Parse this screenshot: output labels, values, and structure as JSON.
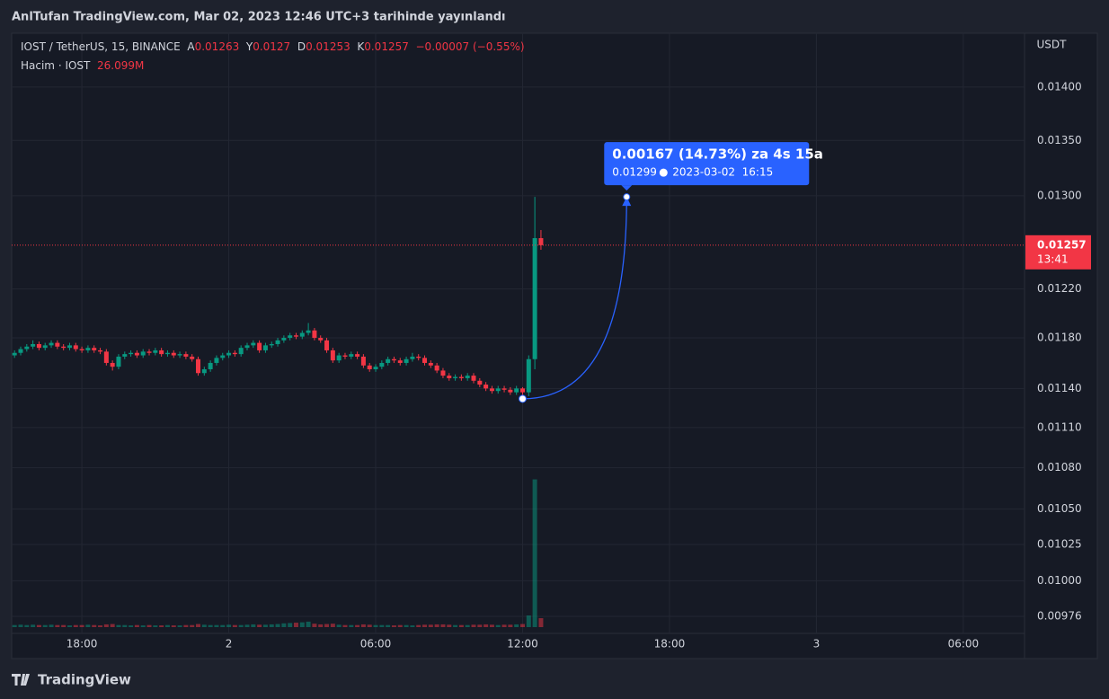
{
  "header": "AnlTufan TradingView.com, Mar 02, 2023 12:46 UTC+3 tarihinde yayınlandı",
  "brand": "TradingView",
  "chart_data": {
    "type": "candlestick",
    "symbol": "IOST / TetherUS, 15, BINANCE",
    "legend_labels": [
      "A",
      "Y",
      "D",
      "K"
    ],
    "change": "−0.00007 (−0.55%)",
    "volume_title": "Hacim · IOST",
    "volume_last_label": "26.099M",
    "unit": "USDT",
    "countdown": "13:41",
    "log_scale": true,
    "grid": true,
    "up_color": "#089981",
    "down_color": "#f23645",
    "ylim": [
      0.009647,
      0.014523
    ],
    "yticks": [
      {
        "value": 0.014,
        "label": "0.01400"
      },
      {
        "value": 0.0135,
        "label": "0.01350"
      },
      {
        "value": 0.013,
        "label": "0.01300"
      },
      {
        "value": 0.0122,
        "label": "0.01220"
      },
      {
        "value": 0.0118,
        "label": "0.01180"
      },
      {
        "value": 0.0114,
        "label": "0.01140"
      },
      {
        "value": 0.0111,
        "label": "0.01110"
      },
      {
        "value": 0.0108,
        "label": "0.01080"
      },
      {
        "value": 0.0105,
        "label": "0.01050"
      },
      {
        "value": 0.01025,
        "label": "0.01025"
      },
      {
        "value": 0.01,
        "label": "0.01000"
      },
      {
        "value": 0.00976,
        "label": "0.00976"
      }
    ],
    "xlim": [
      "2023-03-01T15:08",
      "2023-03-03T08:30"
    ],
    "xticks": [
      {
        "value": "2023-03-01T18:00",
        "label": "18:00"
      },
      {
        "value": "2023-03-02T00:00",
        "label": "2"
      },
      {
        "value": "2023-03-02T06:00",
        "label": "06:00"
      },
      {
        "value": "2023-03-02T12:00",
        "label": "12:00"
      },
      {
        "value": "2023-03-02T18:00",
        "label": "18:00"
      },
      {
        "value": "2023-03-03T00:00",
        "label": "3"
      },
      {
        "value": "2023-03-03T06:00",
        "label": "06:00"
      }
    ],
    "vlim": [
      0,
      650
    ],
    "x": [
      "2023-03-01T15:15",
      "2023-03-01T15:30",
      "2023-03-01T15:45",
      "2023-03-01T16:00",
      "2023-03-01T16:15",
      "2023-03-01T16:30",
      "2023-03-01T16:45",
      "2023-03-01T17:00",
      "2023-03-01T17:15",
      "2023-03-01T17:30",
      "2023-03-01T17:45",
      "2023-03-01T18:00",
      "2023-03-01T18:15",
      "2023-03-01T18:30",
      "2023-03-01T18:45",
      "2023-03-01T19:00",
      "2023-03-01T19:15",
      "2023-03-01T19:30",
      "2023-03-01T19:45",
      "2023-03-01T20:00",
      "2023-03-01T20:15",
      "2023-03-01T20:30",
      "2023-03-01T20:45",
      "2023-03-01T21:00",
      "2023-03-01T21:15",
      "2023-03-01T21:30",
      "2023-03-01T21:45",
      "2023-03-01T22:00",
      "2023-03-01T22:15",
      "2023-03-01T22:30",
      "2023-03-01T22:45",
      "2023-03-01T23:00",
      "2023-03-01T23:15",
      "2023-03-01T23:30",
      "2023-03-01T23:45",
      "2023-03-02T00:00",
      "2023-03-02T00:15",
      "2023-03-02T00:30",
      "2023-03-02T00:45",
      "2023-03-02T01:00",
      "2023-03-02T01:15",
      "2023-03-02T01:30",
      "2023-03-02T01:45",
      "2023-03-02T02:00",
      "2023-03-02T02:15",
      "2023-03-02T02:30",
      "2023-03-02T02:45",
      "2023-03-02T03:00",
      "2023-03-02T03:15",
      "2023-03-02T03:30",
      "2023-03-02T03:45",
      "2023-03-02T04:00",
      "2023-03-02T04:15",
      "2023-03-02T04:30",
      "2023-03-02T04:45",
      "2023-03-02T05:00",
      "2023-03-02T05:15",
      "2023-03-02T05:30",
      "2023-03-02T05:45",
      "2023-03-02T06:00",
      "2023-03-02T06:15",
      "2023-03-02T06:30",
      "2023-03-02T06:45",
      "2023-03-02T07:00",
      "2023-03-02T07:15",
      "2023-03-02T07:30",
      "2023-03-02T07:45",
      "2023-03-02T08:00",
      "2023-03-02T08:15",
      "2023-03-02T08:30",
      "2023-03-02T08:45",
      "2023-03-02T09:00",
      "2023-03-02T09:15",
      "2023-03-02T09:30",
      "2023-03-02T09:45",
      "2023-03-02T10:00",
      "2023-03-02T10:15",
      "2023-03-02T10:30",
      "2023-03-02T10:45",
      "2023-03-02T11:00",
      "2023-03-02T11:15",
      "2023-03-02T11:30",
      "2023-03-02T11:45",
      "2023-03-02T12:00",
      "2023-03-02T12:15",
      "2023-03-02T12:30",
      "2023-03-02T12:45"
    ],
    "ohlc": [
      [
        0.01166,
        0.0117,
        0.01164,
        0.01168
      ],
      [
        0.01168,
        0.01173,
        0.01166,
        0.01171
      ],
      [
        0.01171,
        0.01175,
        0.01169,
        0.01173
      ],
      [
        0.01173,
        0.01178,
        0.01171,
        0.01175
      ],
      [
        0.01175,
        0.01177,
        0.0117,
        0.01172
      ],
      [
        0.01172,
        0.01176,
        0.0117,
        0.01174
      ],
      [
        0.01174,
        0.01178,
        0.01172,
        0.01176
      ],
      [
        0.01176,
        0.01178,
        0.01171,
        0.01173
      ],
      [
        0.01173,
        0.01175,
        0.0117,
        0.01172
      ],
      [
        0.01172,
        0.01176,
        0.0117,
        0.01174
      ],
      [
        0.01174,
        0.01176,
        0.01169,
        0.01171
      ],
      [
        0.01171,
        0.01173,
        0.01168,
        0.0117
      ],
      [
        0.0117,
        0.01174,
        0.01168,
        0.01172
      ],
      [
        0.01172,
        0.01174,
        0.01168,
        0.0117
      ],
      [
        0.0117,
        0.01172,
        0.01167,
        0.01169
      ],
      [
        0.01169,
        0.01171,
        0.01158,
        0.0116
      ],
      [
        0.0116,
        0.01162,
        0.01154,
        0.01157
      ],
      [
        0.01157,
        0.01167,
        0.01155,
        0.01165
      ],
      [
        0.01165,
        0.01169,
        0.01163,
        0.01167
      ],
      [
        0.01167,
        0.0117,
        0.01165,
        0.01168
      ],
      [
        0.01168,
        0.0117,
        0.01164,
        0.01166
      ],
      [
        0.01166,
        0.01171,
        0.01164,
        0.01169
      ],
      [
        0.01169,
        0.01171,
        0.01166,
        0.01168
      ],
      [
        0.01168,
        0.01172,
        0.01166,
        0.0117
      ],
      [
        0.0117,
        0.01172,
        0.01165,
        0.01167
      ],
      [
        0.01167,
        0.0117,
        0.01165,
        0.01168
      ],
      [
        0.01168,
        0.0117,
        0.01164,
        0.01166
      ],
      [
        0.01166,
        0.01169,
        0.01164,
        0.01167
      ],
      [
        0.01167,
        0.01169,
        0.01163,
        0.01165
      ],
      [
        0.01165,
        0.01167,
        0.01161,
        0.01163
      ],
      [
        0.01163,
        0.01165,
        0.0115,
        0.01152
      ],
      [
        0.01152,
        0.01157,
        0.0115,
        0.01155
      ],
      [
        0.01155,
        0.01162,
        0.01153,
        0.0116
      ],
      [
        0.0116,
        0.01166,
        0.01158,
        0.01164
      ],
      [
        0.01164,
        0.01168,
        0.01162,
        0.01166
      ],
      [
        0.01166,
        0.0117,
        0.01164,
        0.01168
      ],
      [
        0.01168,
        0.0117,
        0.01165,
        0.01167
      ],
      [
        0.01167,
        0.01174,
        0.01165,
        0.01172
      ],
      [
        0.01172,
        0.01176,
        0.0117,
        0.01174
      ],
      [
        0.01174,
        0.01178,
        0.01172,
        0.01176
      ],
      [
        0.01176,
        0.01178,
        0.01168,
        0.0117
      ],
      [
        0.0117,
        0.01176,
        0.01168,
        0.01174
      ],
      [
        0.01174,
        0.01177,
        0.01172,
        0.01175
      ],
      [
        0.01175,
        0.0118,
        0.01173,
        0.01178
      ],
      [
        0.01178,
        0.01182,
        0.01176,
        0.0118
      ],
      [
        0.0118,
        0.01184,
        0.01178,
        0.01182
      ],
      [
        0.01182,
        0.01184,
        0.01179,
        0.01181
      ],
      [
        0.01181,
        0.01186,
        0.01179,
        0.01184
      ],
      [
        0.01184,
        0.01192,
        0.01182,
        0.01186
      ],
      [
        0.01186,
        0.01188,
        0.01178,
        0.0118
      ],
      [
        0.0118,
        0.01182,
        0.01176,
        0.01178
      ],
      [
        0.01178,
        0.0118,
        0.01168,
        0.0117
      ],
      [
        0.0117,
        0.01172,
        0.0116,
        0.01162
      ],
      [
        0.01162,
        0.01168,
        0.0116,
        0.01166
      ],
      [
        0.01166,
        0.01168,
        0.01163,
        0.01165
      ],
      [
        0.01165,
        0.01169,
        0.01163,
        0.01167
      ],
      [
        0.01167,
        0.01169,
        0.01163,
        0.01165
      ],
      [
        0.01165,
        0.01167,
        0.01156,
        0.01158
      ],
      [
        0.01158,
        0.0116,
        0.01153,
        0.01155
      ],
      [
        0.01155,
        0.01159,
        0.01153,
        0.01157
      ],
      [
        0.01157,
        0.01162,
        0.01155,
        0.0116
      ],
      [
        0.0116,
        0.01165,
        0.01158,
        0.01163
      ],
      [
        0.01163,
        0.01165,
        0.0116,
        0.01162
      ],
      [
        0.01162,
        0.01164,
        0.01158,
        0.0116
      ],
      [
        0.0116,
        0.01165,
        0.01158,
        0.01163
      ],
      [
        0.01163,
        0.01168,
        0.01161,
        0.01165
      ],
      [
        0.01165,
        0.01167,
        0.01162,
        0.01164
      ],
      [
        0.01164,
        0.01166,
        0.01158,
        0.0116
      ],
      [
        0.0116,
        0.01162,
        0.01156,
        0.01158
      ],
      [
        0.01158,
        0.0116,
        0.01152,
        0.01154
      ],
      [
        0.01154,
        0.01156,
        0.01148,
        0.0115
      ],
      [
        0.0115,
        0.01152,
        0.01146,
        0.01148
      ],
      [
        0.01148,
        0.01151,
        0.01146,
        0.01149
      ],
      [
        0.01149,
        0.01151,
        0.01146,
        0.01148
      ],
      [
        0.01148,
        0.01152,
        0.01146,
        0.0115
      ],
      [
        0.0115,
        0.01152,
        0.01144,
        0.01146
      ],
      [
        0.01146,
        0.01148,
        0.01141,
        0.01143
      ],
      [
        0.01143,
        0.01145,
        0.01138,
        0.0114
      ],
      [
        0.0114,
        0.01142,
        0.01136,
        0.01138
      ],
      [
        0.01138,
        0.01142,
        0.01136,
        0.0114
      ],
      [
        0.0114,
        0.01142,
        0.01137,
        0.01139
      ],
      [
        0.01139,
        0.01141,
        0.01135,
        0.01137
      ],
      [
        0.01137,
        0.01142,
        0.01135,
        0.0114
      ],
      [
        0.0114,
        0.01141,
        0.01132,
        0.01137
      ],
      [
        0.01137,
        0.01166,
        0.01134,
        0.01163
      ],
      [
        0.01163,
        0.01299,
        0.01155,
        0.01263
      ],
      [
        0.01263,
        0.0127,
        0.01253,
        0.01257
      ]
    ],
    "volume": [
      6,
      7,
      6,
      7,
      6,
      6,
      7,
      6,
      6,
      5,
      6,
      6,
      7,
      6,
      5,
      8,
      9,
      6,
      6,
      5,
      6,
      5,
      6,
      5,
      5,
      6,
      5,
      5,
      6,
      6,
      9,
      7,
      6,
      6,
      6,
      7,
      6,
      6,
      7,
      8,
      7,
      7,
      8,
      9,
      11,
      12,
      13,
      14,
      16,
      10,
      8,
      9,
      10,
      7,
      6,
      6,
      6,
      8,
      7,
      6,
      6,
      6,
      5,
      6,
      6,
      5,
      6,
      7,
      7,
      8,
      8,
      7,
      6,
      6,
      6,
      7,
      7,
      8,
      7,
      6,
      7,
      7,
      8,
      9,
      34,
      431,
      26.099
    ],
    "annotation": {
      "text": "0.00167 (14.73%) za 4s 15a",
      "date": "2023-03-02  16:15",
      "start": {
        "x": "2023-03-02T12:00",
        "y": 0.01132
      },
      "end": {
        "x": "2023-03-02T16:15",
        "y": 0.01299
      }
    }
  }
}
